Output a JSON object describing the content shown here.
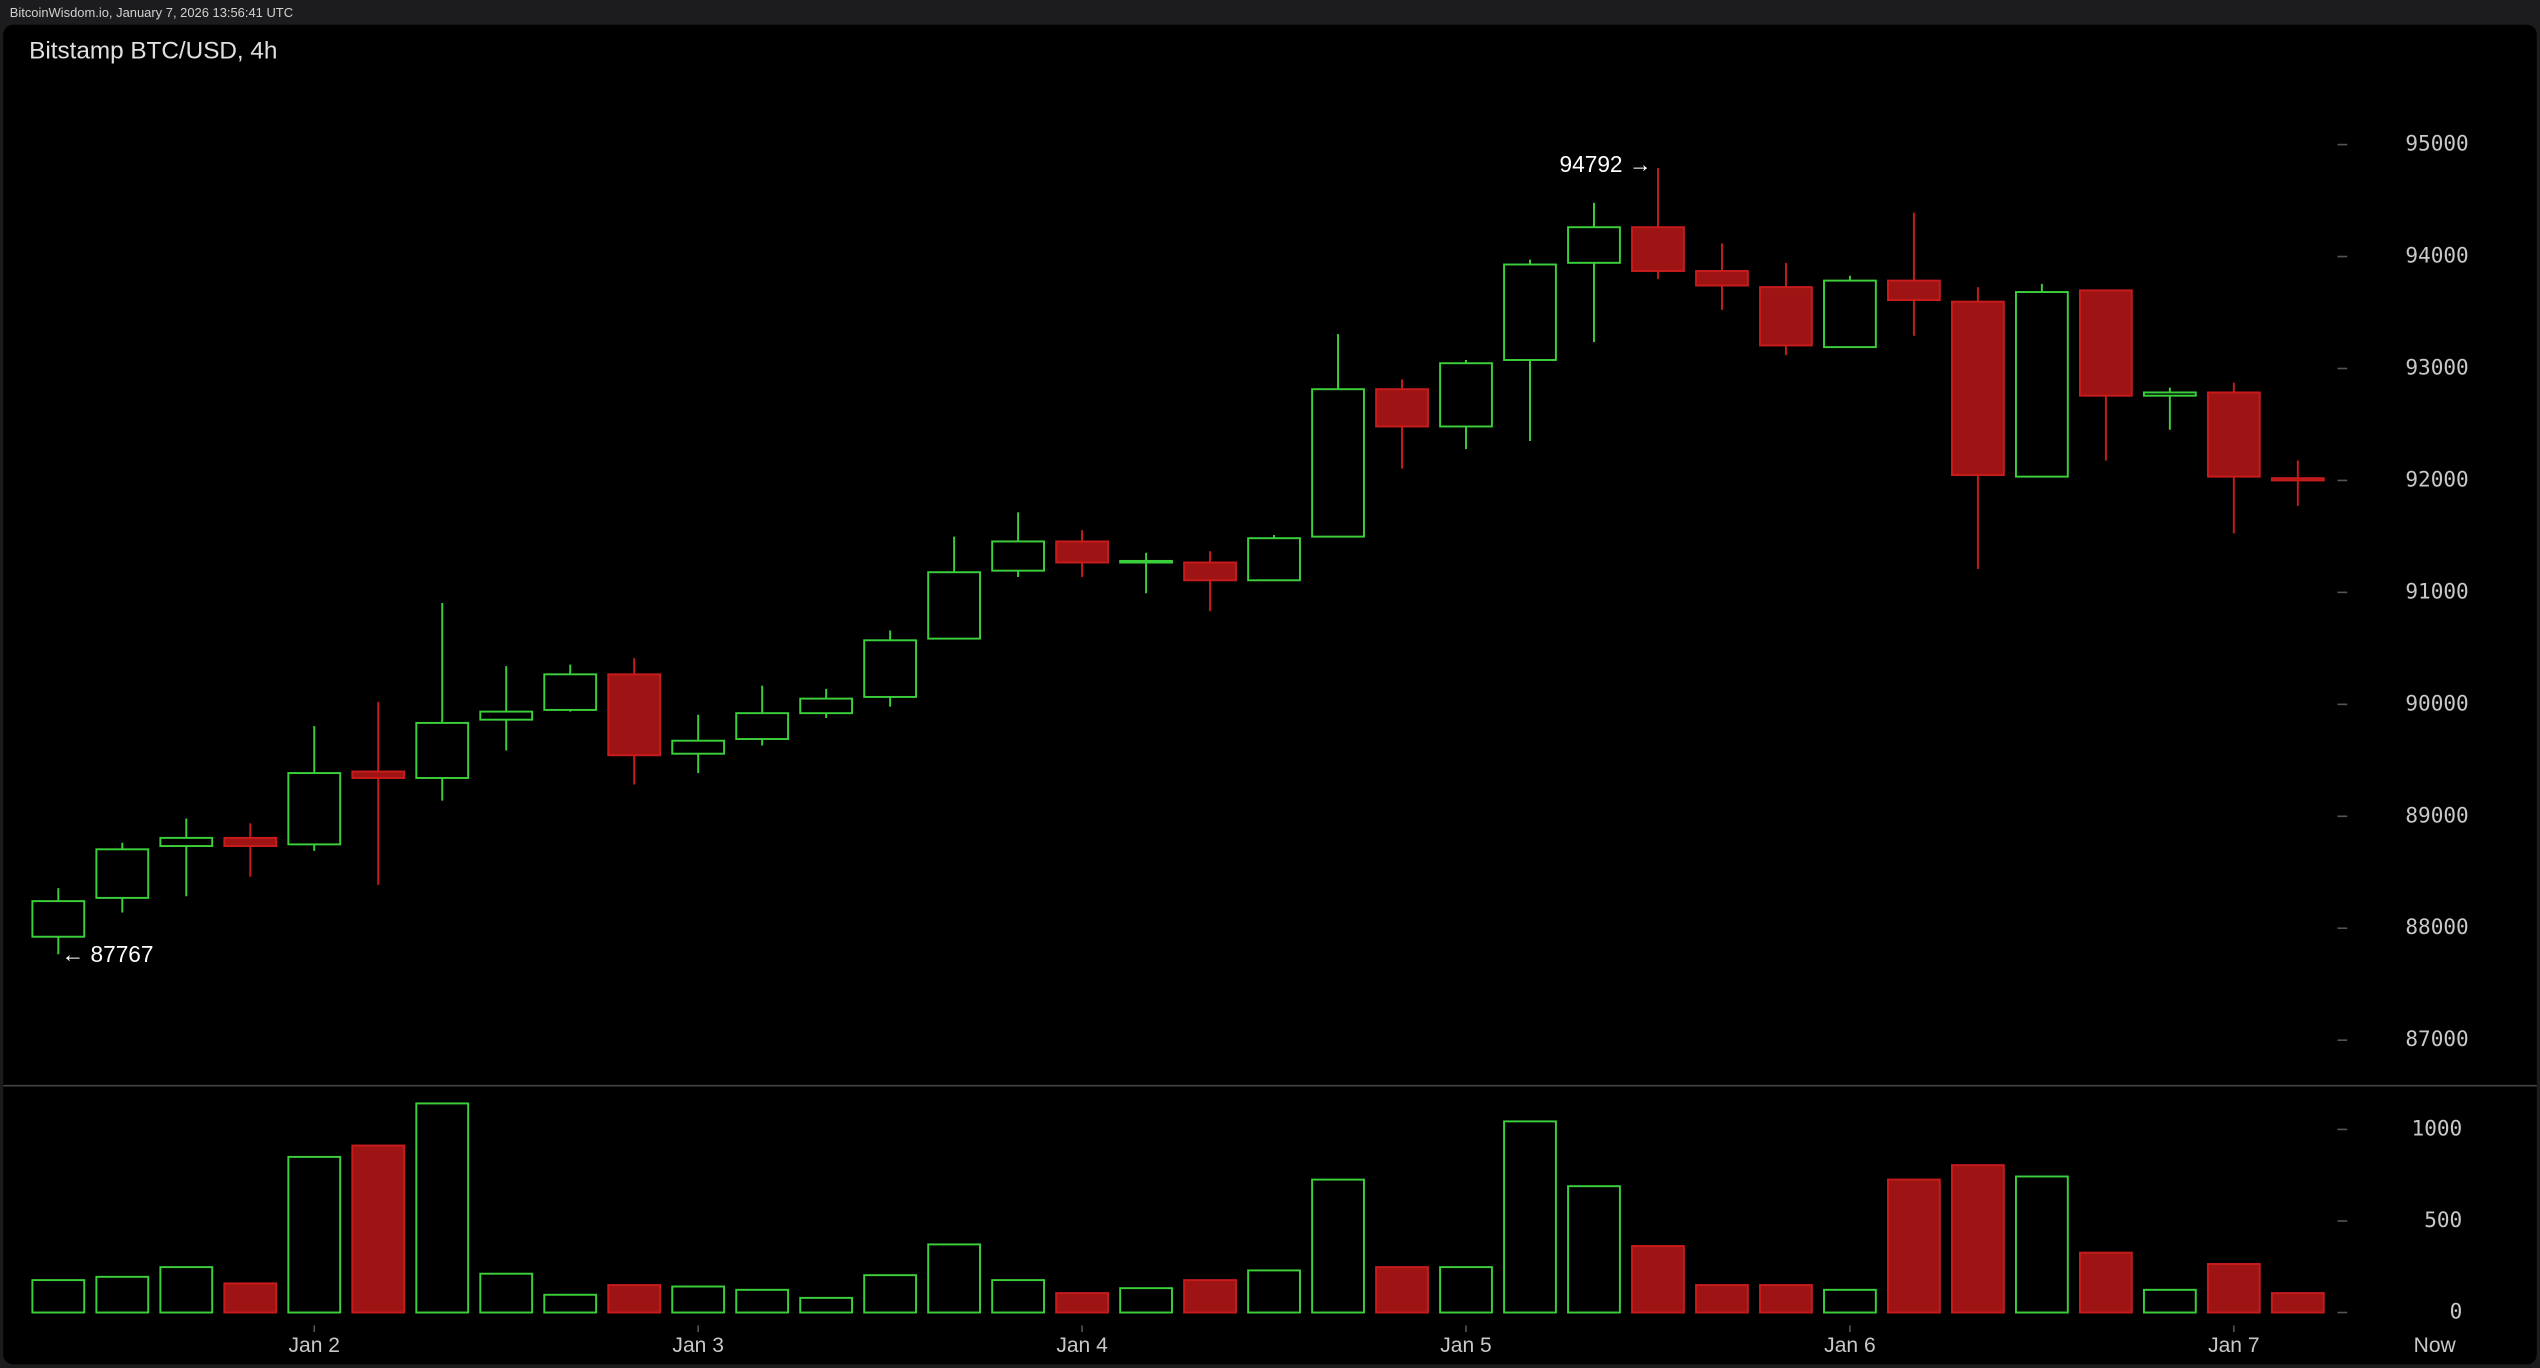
{
  "chart_data": {
    "type": "candlestick",
    "source": "BitcoinWisdom.io, January 7, 2026 13:56:41 UTC",
    "title": "Bitstamp BTC/USD, 4h",
    "categories": [
      null,
      null,
      null,
      null,
      "Jan 2",
      null,
      null,
      null,
      null,
      null,
      "Jan 3",
      null,
      null,
      null,
      null,
      null,
      "Jan 4",
      null,
      null,
      null,
      null,
      null,
      "Jan 5",
      null,
      null,
      null,
      null,
      null,
      "Jan 6",
      null,
      null,
      null,
      null,
      null,
      "Jan 7",
      null
    ],
    "now_label": "Now",
    "open": [
      87924,
      88271,
      88734,
      88807,
      88749,
      89400,
      89342,
      89863,
      89950,
      90268,
      89559,
      89690,
      89921,
      90066,
      90587,
      91194,
      91455,
      91267,
      91267,
      91108,
      91498,
      92815,
      92482,
      93076,
      93944,
      94262,
      93871,
      93727,
      93191,
      93785,
      93597,
      92034,
      93698,
      92757,
      92786,
      92020
    ],
    "high": [
      88358,
      88763,
      88980,
      88937,
      89805,
      90022,
      90905,
      90341,
      90355,
      90413,
      89907,
      90167,
      90138,
      90659,
      91498,
      91715,
      91556,
      91354,
      91368,
      91513,
      93307,
      92902,
      93076,
      93973,
      94479,
      94792,
      94117,
      93944,
      93828,
      94392,
      93727,
      93756,
      93698,
      92829,
      92873,
      92178
    ],
    "low": [
      87767,
      88141,
      88286,
      88460,
      88691,
      88387,
      89140,
      89588,
      89935,
      89284,
      89386,
      89632,
      89878,
      89979,
      90587,
      91137,
      91137,
      90992,
      90833,
      91108,
      91498,
      92106,
      92280,
      92352,
      93235,
      93799,
      93524,
      93119,
      93191,
      93293,
      91209,
      92034,
      92178,
      92453,
      91527,
      91773
    ],
    "close": [
      88242,
      88705,
      88807,
      88734,
      89386,
      89342,
      89834,
      89935,
      90268,
      89545,
      89675,
      89921,
      90051,
      90572,
      91180,
      91455,
      91267,
      91281,
      91108,
      91484,
      92815,
      92482,
      93047,
      93929,
      94262,
      93871,
      93741,
      93206,
      93785,
      93611,
      92048,
      93683,
      92757,
      92786,
      92034,
      92000
    ],
    "volume": [
      177,
      195,
      248,
      159,
      850,
      912,
      1142,
      212,
      97,
      150,
      142,
      124,
      80,
      204,
      372,
      177,
      106,
      133,
      177,
      230,
      726,
      248,
      248,
      1044,
      690,
      363,
      150,
      150,
      124,
      726,
      805,
      743,
      327,
      124,
      265,
      106
    ],
    "annotations": [
      {
        "value": 94792,
        "label": "94792 →"
      },
      {
        "value": 87767,
        "label": "← 87767"
      }
    ],
    "ylim": [
      86593,
      96071
    ],
    "yticks": [
      87000,
      88000,
      89000,
      90000,
      91000,
      92000,
      93000,
      94000,
      95000
    ],
    "volume_ylim": [
      0,
      1221
    ],
    "volume_yticks": [
      0,
      500,
      1000
    ],
    "up_color": "#3ccf3c",
    "down_color": "#9e1414"
  }
}
